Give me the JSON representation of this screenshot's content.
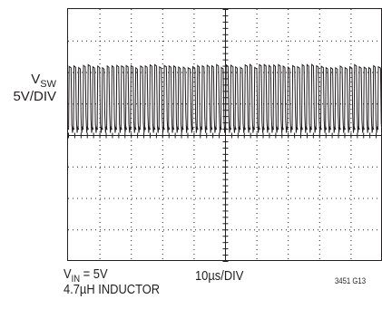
{
  "chart_data": {
    "type": "line",
    "title": "",
    "signal": {
      "symbol": "V",
      "subscript": "SW",
      "scale": "5V/DIV"
    },
    "time_scale": "10µs/DIV",
    "conditions": {
      "vin_symbol": "V",
      "vin_subscript": "IN",
      "vin_value": " = 5V",
      "inductor": "4.7µH INDUCTOR"
    },
    "figure_id": "3451 G13",
    "grid": {
      "on": true,
      "h_divisions": 10,
      "v_divisions": 8,
      "style": "dotted"
    },
    "waveform": {
      "description_values": "switching waveform; high ≈ 2.2 div above centre, low ≈ 0.2 div above centre",
      "high_div": 2.2,
      "low_div": 0.2,
      "periods_visible": 66
    }
  }
}
